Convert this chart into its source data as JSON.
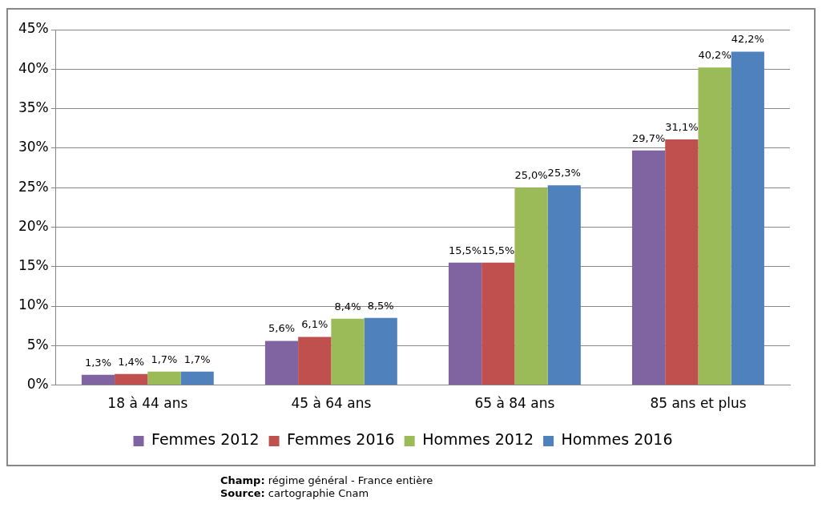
{
  "chart_data": {
    "type": "bar",
    "categories": [
      "18 à 44 ans",
      "45 à 64 ans",
      "65 à 84 ans",
      "85 ans et plus"
    ],
    "series": [
      {
        "name": "Femmes 2012",
        "color": "#8064a2",
        "values": [
          1.3,
          5.6,
          15.5,
          29.7
        ],
        "value_labels": [
          "1,3%",
          "5,6%",
          "15,5%",
          "29,7%"
        ]
      },
      {
        "name": "Femmes 2016",
        "color": "#c0504d",
        "values": [
          1.4,
          6.1,
          15.5,
          31.1
        ],
        "value_labels": [
          "1,4%",
          "6,1%",
          "15,5%",
          "31,1%"
        ]
      },
      {
        "name": "Hommes 2012",
        "color": "#9bbb59",
        "values": [
          1.7,
          8.4,
          25.0,
          40.2
        ],
        "value_labels": [
          "1,7%",
          "8,4%",
          "25,0%",
          "40,2%"
        ]
      },
      {
        "name": "Hommes 2016",
        "color": "#4f81bd",
        "values": [
          1.7,
          8.5,
          25.3,
          42.2
        ],
        "value_labels": [
          "1,7%",
          "8,5%",
          "25,3%",
          "42,2%"
        ]
      }
    ],
    "ylim": [
      0,
      45
    ],
    "yticks": [
      {
        "value": 0,
        "label": "0%"
      },
      {
        "value": 5,
        "label": "5%"
      },
      {
        "value": 10,
        "label": "10%"
      },
      {
        "value": 15,
        "label": "15%"
      },
      {
        "value": 20,
        "label": "20%"
      },
      {
        "value": 25,
        "label": "25%"
      },
      {
        "value": 30,
        "label": "30%"
      },
      {
        "value": 35,
        "label": "35%"
      },
      {
        "value": 40,
        "label": "40%"
      },
      {
        "value": 45,
        "label": "45%"
      }
    ],
    "grid": "y",
    "legend": "bottom",
    "annotations": [
      "Champ: régime général - France entière",
      "Source: cartographie Cnam"
    ]
  }
}
